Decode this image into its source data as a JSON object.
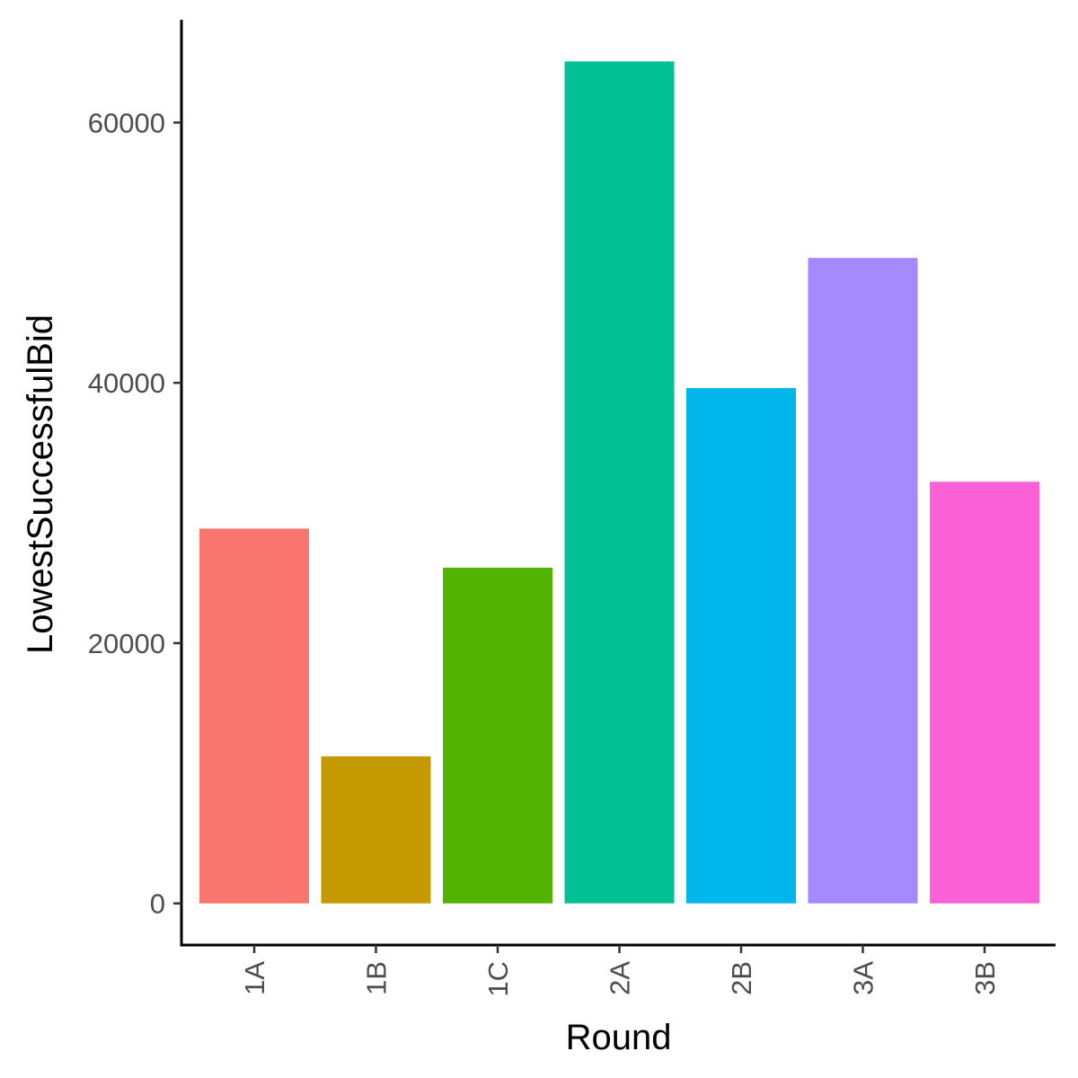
{
  "chart_data": {
    "type": "bar",
    "title": "",
    "xlabel": "Round",
    "ylabel": "LowestSuccessfulBid",
    "categories": [
      "1A",
      "1B",
      "1C",
      "2A",
      "2B",
      "3A",
      "3B"
    ],
    "values": [
      28800,
      11300,
      25800,
      64700,
      39600,
      49600,
      32400
    ],
    "colors": [
      "#F8766D",
      "#C49A00",
      "#53B400",
      "#00C094",
      "#00B6EB",
      "#A58AFF",
      "#FB61D7"
    ],
    "y_ticks": [
      0,
      20000,
      40000,
      60000
    ],
    "ylim": [
      -3200,
      67900
    ],
    "grid": false,
    "legend": "none"
  }
}
